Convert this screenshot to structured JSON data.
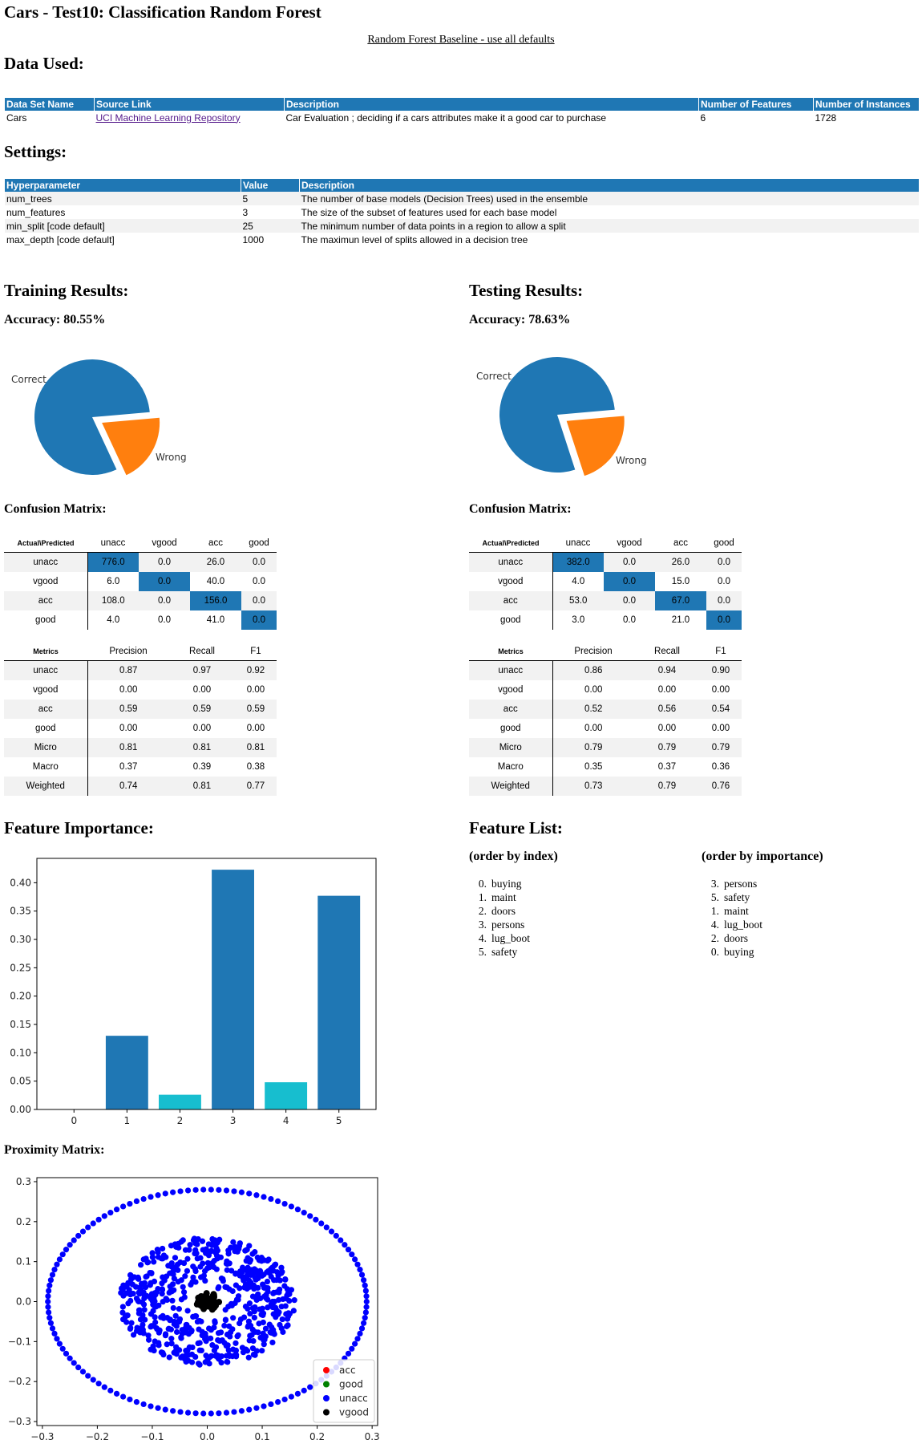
{
  "page": {
    "title": "Cars - Test10: Classification Random Forest",
    "baseline_link": "Random Forest Baseline - use all defaults"
  },
  "data_used": {
    "heading": "Data Used:",
    "columns": [
      "Data Set Name",
      "Source Link",
      "Description",
      "Number of Features",
      "Number of Instances"
    ],
    "row": {
      "name": "Cars",
      "source": "UCI Machine Learning Repository",
      "description": "Car Evaluation ; deciding if a cars attributes make it a good car to purchase",
      "features": "6",
      "instances": "1728"
    }
  },
  "settings": {
    "heading": "Settings:",
    "columns": [
      "Hyperparameter",
      "Value",
      "Description"
    ],
    "rows": [
      {
        "param": "num_trees",
        "value": "5",
        "desc": "The number of base models (Decision Trees) used in the ensemble"
      },
      {
        "param": "num_features",
        "value": "3",
        "desc": "The size of the subset of features used for each base model"
      },
      {
        "param": "min_split [code default]",
        "value": "25",
        "desc": "The minimum number of data points in a region to allow a split"
      },
      {
        "param": "max_depth [code default]",
        "value": "1000",
        "desc": "The maximun level of splits allowed in a decision tree"
      }
    ]
  },
  "training": {
    "heading": "Training Results:",
    "accuracy": "Accuracy: 80.55%",
    "pie_labels": {
      "correct": "Correct",
      "wrong": "Wrong"
    },
    "cm_heading": "Confusion Matrix:",
    "cm_corner": "Actual\\Predicted",
    "classes": [
      "unacc",
      "vgood",
      "acc",
      "good"
    ],
    "cm": [
      [
        "776.0",
        "0.0",
        "26.0",
        "0.0"
      ],
      [
        "6.0",
        "0.0",
        "40.0",
        "0.0"
      ],
      [
        "108.0",
        "0.0",
        "156.0",
        "0.0"
      ],
      [
        "4.0",
        "0.0",
        "41.0",
        "0.0"
      ]
    ],
    "metrics_corner": "Metrics",
    "metric_cols": [
      "Precision",
      "Recall",
      "F1"
    ],
    "metrics": [
      {
        "name": "unacc",
        "values": [
          "0.87",
          "0.97",
          "0.92"
        ]
      },
      {
        "name": "vgood",
        "values": [
          "0.00",
          "0.00",
          "0.00"
        ]
      },
      {
        "name": "acc",
        "values": [
          "0.59",
          "0.59",
          "0.59"
        ]
      },
      {
        "name": "good",
        "values": [
          "0.00",
          "0.00",
          "0.00"
        ]
      },
      {
        "name": "Micro",
        "values": [
          "0.81",
          "0.81",
          "0.81"
        ]
      },
      {
        "name": "Macro",
        "values": [
          "0.37",
          "0.39",
          "0.38"
        ]
      },
      {
        "name": "Weighted",
        "values": [
          "0.74",
          "0.81",
          "0.77"
        ]
      }
    ]
  },
  "testing": {
    "heading": "Testing Results:",
    "accuracy": "Accuracy: 78.63%",
    "pie_labels": {
      "correct": "Correct",
      "wrong": "Wrong"
    },
    "cm_heading": "Confusion Matrix:",
    "cm_corner": "Actual\\Predicted",
    "classes": [
      "unacc",
      "vgood",
      "acc",
      "good"
    ],
    "cm": [
      [
        "382.0",
        "0.0",
        "26.0",
        "0.0"
      ],
      [
        "4.0",
        "0.0",
        "15.0",
        "0.0"
      ],
      [
        "53.0",
        "0.0",
        "67.0",
        "0.0"
      ],
      [
        "3.0",
        "0.0",
        "21.0",
        "0.0"
      ]
    ],
    "metrics_corner": "Metrics",
    "metric_cols": [
      "Precision",
      "Recall",
      "F1"
    ],
    "metrics": [
      {
        "name": "unacc",
        "values": [
          "0.86",
          "0.94",
          "0.90"
        ]
      },
      {
        "name": "vgood",
        "values": [
          "0.00",
          "0.00",
          "0.00"
        ]
      },
      {
        "name": "acc",
        "values": [
          "0.52",
          "0.56",
          "0.54"
        ]
      },
      {
        "name": "good",
        "values": [
          "0.00",
          "0.00",
          "0.00"
        ]
      },
      {
        "name": "Micro",
        "values": [
          "0.79",
          "0.79",
          "0.79"
        ]
      },
      {
        "name": "Macro",
        "values": [
          "0.35",
          "0.37",
          "0.36"
        ]
      },
      {
        "name": "Weighted",
        "values": [
          "0.73",
          "0.79",
          "0.76"
        ]
      }
    ]
  },
  "feature_importance": {
    "heading": "Feature Importance:"
  },
  "feature_list": {
    "heading": "Feature List:",
    "by_index_heading": "(order by index)",
    "by_importance_heading": "(order by importance)",
    "by_index": [
      {
        "num": "0.",
        "name": "buying"
      },
      {
        "num": "1.",
        "name": "maint"
      },
      {
        "num": "2.",
        "name": "doors"
      },
      {
        "num": "3.",
        "name": "persons"
      },
      {
        "num": "4.",
        "name": "lug_boot"
      },
      {
        "num": "5.",
        "name": "safety"
      }
    ],
    "by_importance": [
      {
        "num": "3.",
        "name": "persons"
      },
      {
        "num": "5.",
        "name": "safety"
      },
      {
        "num": "1.",
        "name": "maint"
      },
      {
        "num": "4.",
        "name": "lug_boot"
      },
      {
        "num": "2.",
        "name": "doors"
      },
      {
        "num": "0.",
        "name": "buying"
      }
    ]
  },
  "proximity": {
    "heading": "Proximity Matrix:"
  },
  "colors": {
    "blue": "#1f77b4",
    "orange": "#ff7f0e",
    "cyan": "#17becf"
  },
  "chart_data": [
    {
      "type": "pie",
      "id": "training-accuracy-pie",
      "labels": [
        "Correct",
        "Wrong"
      ],
      "values": [
        80.55,
        19.45
      ],
      "colors": [
        "#1f77b4",
        "#ff7f0e"
      ],
      "explode": [
        "none",
        "Wrong"
      ]
    },
    {
      "type": "pie",
      "id": "testing-accuracy-pie",
      "labels": [
        "Correct",
        "Wrong"
      ],
      "values": [
        78.63,
        21.37
      ],
      "colors": [
        "#1f77b4",
        "#ff7f0e"
      ],
      "explode": [
        "none",
        "Wrong"
      ]
    },
    {
      "type": "bar",
      "id": "feature-importance",
      "categories": [
        "0",
        "1",
        "2",
        "3",
        "4",
        "5"
      ],
      "values": [
        0.0,
        0.13,
        0.026,
        0.423,
        0.048,
        0.377
      ],
      "colors": [
        "#1f77b4",
        "#1f77b4",
        "#17becf",
        "#1f77b4",
        "#17becf",
        "#1f77b4"
      ],
      "ylim": [
        0,
        0.443
      ],
      "yticks": [
        "0.00",
        "0.05",
        "0.10",
        "0.15",
        "0.20",
        "0.25",
        "0.30",
        "0.35",
        "0.40"
      ],
      "title": "",
      "xlabel": "",
      "ylabel": ""
    },
    {
      "type": "scatter",
      "id": "proximity-matrix",
      "xlim": [
        -0.31,
        0.31
      ],
      "ylim": [
        -0.31,
        0.31
      ],
      "xticks": [
        "−0.3",
        "−0.2",
        "−0.1",
        "0.0",
        "0.1",
        "0.2",
        "0.3"
      ],
      "yticks": [
        "−0.3",
        "−0.2",
        "−0.1",
        "0.0",
        "0.1",
        "0.2",
        "0.3"
      ],
      "legend": [
        "acc",
        "good",
        "unacc",
        "vgood"
      ],
      "legend_colors": [
        "#ff0000",
        "#008000",
        "#0000ff",
        "#000000"
      ],
      "legend_position": "lower-right",
      "series": [
        {
          "name": "unacc",
          "color": "#0000ff",
          "shape": "outer ring",
          "radius_x": 0.29,
          "radius_y": 0.28
        },
        {
          "name": "unacc",
          "color": "#0000ff",
          "shape": "inner cloud",
          "radius_x": 0.16,
          "radius_y": 0.16
        },
        {
          "name": "vgood",
          "color": "#000000",
          "shape": "center cluster",
          "radius_x": 0.022,
          "radius_y": 0.022
        }
      ]
    }
  ]
}
